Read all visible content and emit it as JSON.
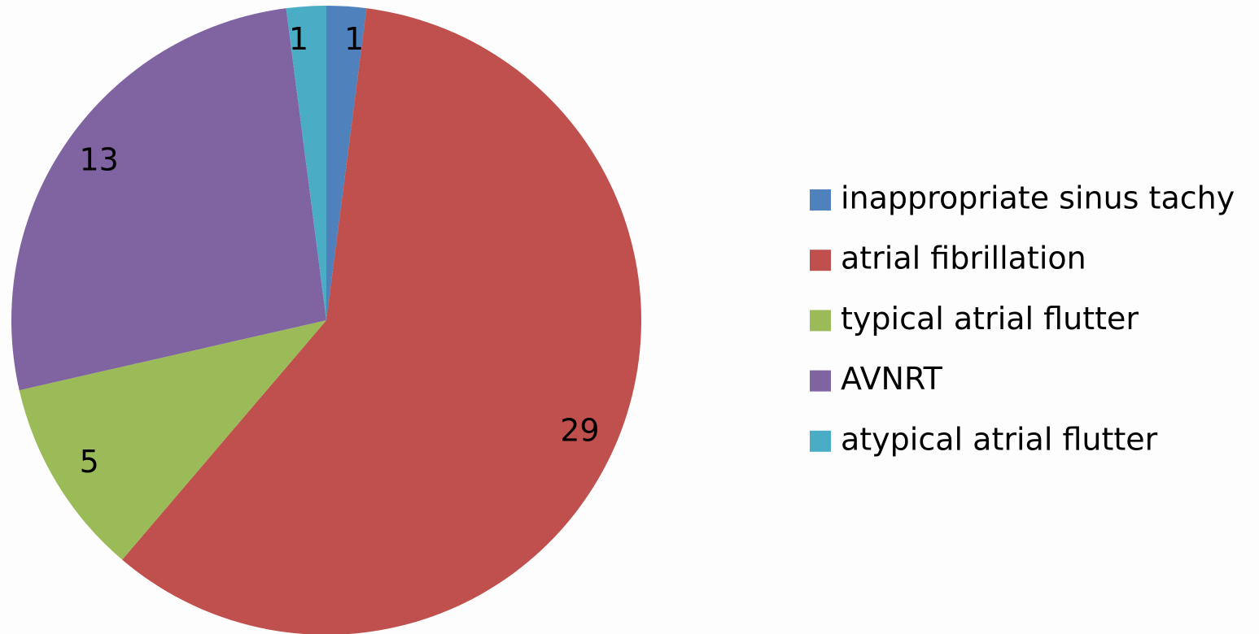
{
  "chart_data": {
    "type": "pie",
    "categories": [
      "inappropriate sinus tachy",
      "atrial fibrillation",
      "typical atrial flutter",
      "AVNRT",
      "atypical atrial flutter"
    ],
    "values": [
      1,
      29,
      5,
      13,
      1
    ],
    "colors": [
      "#4f81bd",
      "#c0504d",
      "#9bbb59",
      "#8064a2",
      "#4bacc6"
    ],
    "legend": "right"
  }
}
